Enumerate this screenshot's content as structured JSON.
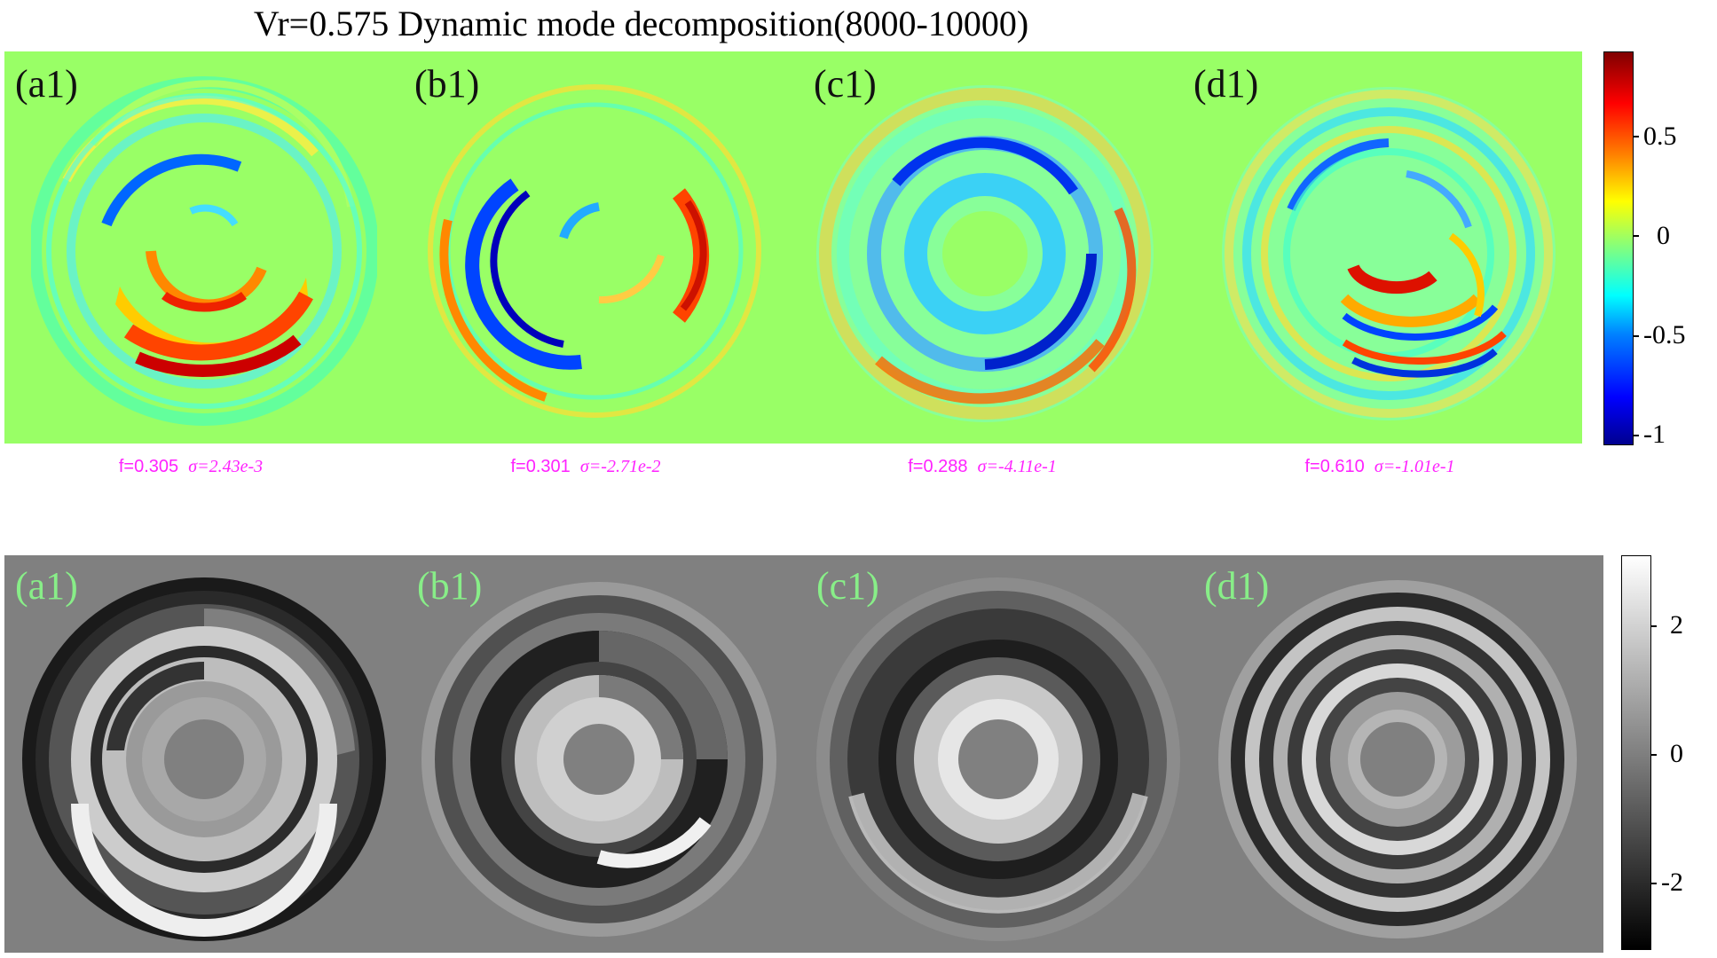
{
  "title": "Vr=0.575  Dynamic mode decomposition(8000-10000)",
  "top_row": {
    "panels": [
      {
        "label": "(a1)",
        "f": "f=0.305",
        "sigma": "σ=2.43e-3"
      },
      {
        "label": "(b1)",
        "f": "f=0.301",
        "sigma": "σ=-2.71e-2"
      },
      {
        "label": "(c1)",
        "f": "f=0.288",
        "sigma": "σ=-4.11e-1"
      },
      {
        "label": "(d1)",
        "f": "f=0.610",
        "sigma": "σ=-1.01e-1"
      }
    ],
    "colorbar": {
      "ticks": [
        "0.5",
        "0",
        "-0.5",
        "-1"
      ],
      "colormap": "jet"
    }
  },
  "bottom_row": {
    "panels": [
      {
        "label": "(a1)"
      },
      {
        "label": "(b1)"
      },
      {
        "label": "(c1)"
      },
      {
        "label": "(d1)"
      }
    ],
    "colorbar": {
      "ticks": [
        "2",
        "0",
        "-2"
      ],
      "colormap": "gray"
    }
  },
  "colors": {
    "top_background": "#99ff66",
    "bottom_background": "#808080",
    "caption": "#ff22ff",
    "bottom_label": "#88ee88"
  }
}
